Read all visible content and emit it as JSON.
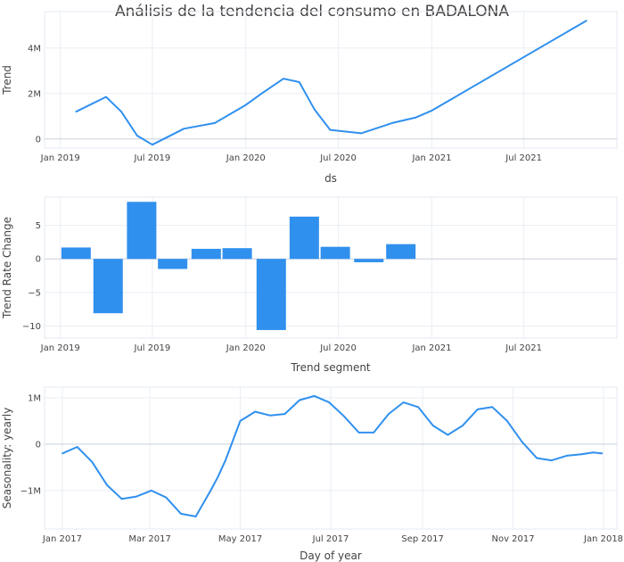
{
  "title": "Análisis de la tendencia del consumo en BADALONA",
  "colors": {
    "series": "#3090ee",
    "grid": "#eaeef5",
    "text": "#444444"
  },
  "chart_data": [
    {
      "type": "line",
      "xlabel": "ds",
      "ylabel": "Trend",
      "x_ticks": [
        "Jan 2019",
        "Jul 2019",
        "Jan 2020",
        "Jul 2020",
        "Jan 2021",
        "Jul 2021"
      ],
      "y_ticks": [
        "0",
        "2M",
        "4M"
      ],
      "xlim": [
        "2018-12-01",
        "2021-12-31"
      ],
      "ylim": [
        -400000,
        5600000
      ],
      "grid": true,
      "x": [
        "2019-02-01",
        "2019-04-01",
        "2019-05-01",
        "2019-06-01",
        "2019-07-01",
        "2019-08-01",
        "2019-09-01",
        "2019-11-01",
        "2020-01-01",
        "2020-02-01",
        "2020-03-15",
        "2020-04-15",
        "2020-05-15",
        "2020-06-15",
        "2020-08-15",
        "2020-10-15",
        "2020-12-01",
        "2021-01-01",
        "2021-11-01"
      ],
      "y": [
        1200000,
        1850000,
        1200000,
        150000,
        -250000,
        100000,
        450000,
        700000,
        1500000,
        2000000,
        2650000,
        2500000,
        1300000,
        400000,
        250000,
        700000,
        950000,
        1250000,
        5200000
      ]
    },
    {
      "type": "bar",
      "xlabel": "Trend segment",
      "ylabel": "Trend Rate Change",
      "x_ticks": [
        "Jan 2019",
        "Jul 2019",
        "Jan 2020",
        "Jul 2020",
        "Jan 2021",
        "Jul 2021"
      ],
      "y_ticks": [
        "−10",
        "−5",
        "0",
        "5"
      ],
      "xlim": [
        "2018-12-01",
        "2021-12-31"
      ],
      "ylim": [
        -11.8,
        9.2
      ],
      "grid": true,
      "x": [
        "2019-02-01",
        "2019-04-05",
        "2019-06-10",
        "2019-08-10",
        "2019-10-15",
        "2019-12-15",
        "2020-02-20",
        "2020-04-25",
        "2020-06-25",
        "2020-08-30",
        "2020-11-01"
      ],
      "values": [
        1.7,
        -8.1,
        8.5,
        -1.5,
        1.5,
        1.6,
        -10.6,
        6.3,
        1.8,
        -0.5,
        2.2
      ]
    },
    {
      "type": "line",
      "xlabel": "Day of year",
      "ylabel": "Seasonality: yearly",
      "x_ticks": [
        "Jan 2017",
        "Mar 2017",
        "May 2017",
        "Jul 2017",
        "Sep 2017",
        "Nov 2017",
        "Jan 2018"
      ],
      "y_ticks": [
        "−1M",
        "0",
        "1M"
      ],
      "xlim": [
        -12,
        374
      ],
      "ylim": [
        -1830000,
        1230000
      ],
      "grid": true,
      "x": [
        0,
        10,
        20,
        30,
        40,
        50,
        60,
        70,
        80,
        90,
        100,
        105,
        110,
        120,
        130,
        140,
        150,
        160,
        170,
        180,
        190,
        200,
        210,
        220,
        230,
        240,
        250,
        260,
        270,
        280,
        290,
        300,
        310,
        320,
        330,
        340,
        350,
        358,
        364
      ],
      "y": [
        -200000,
        -60000,
        -380000,
        -880000,
        -1180000,
        -1130000,
        -1000000,
        -1150000,
        -1500000,
        -1560000,
        -1000000,
        -700000,
        -350000,
        500000,
        700000,
        620000,
        650000,
        950000,
        1040000,
        900000,
        600000,
        250000,
        250000,
        650000,
        900000,
        800000,
        400000,
        200000,
        400000,
        750000,
        800000,
        500000,
        50000,
        -300000,
        -350000,
        -250000,
        -220000,
        -180000,
        -200000
      ]
    }
  ]
}
